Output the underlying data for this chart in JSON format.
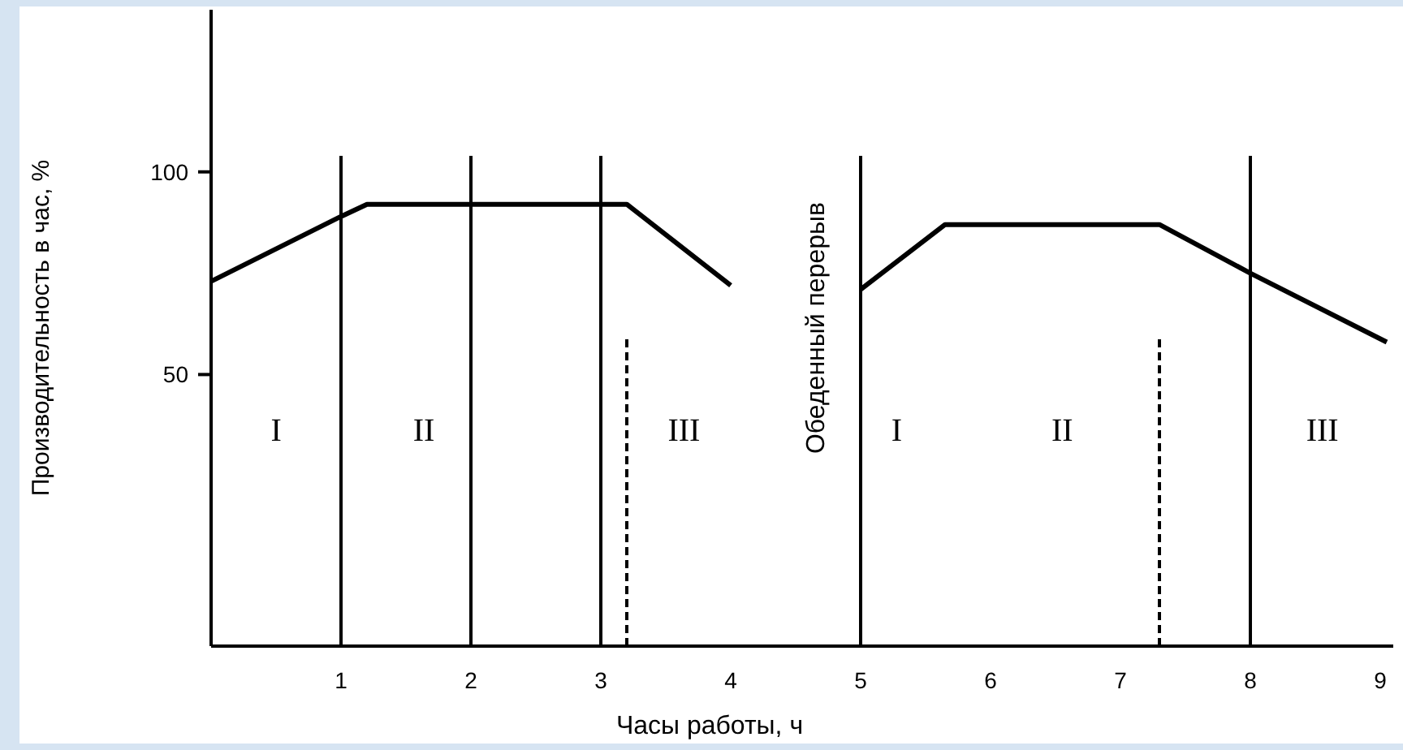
{
  "chart_data": {
    "type": "line",
    "xlabel": "Часы работы, ч",
    "ylabel": "Производительность в час, %",
    "x": [
      0,
      1,
      1.2,
      3.2,
      4,
      5,
      5.65,
      7.3,
      8,
      9.05
    ],
    "series": [
      {
        "color": "#000000",
        "values": [
          73,
          89,
          92,
          92,
          72,
          null,
          null,
          null,
          null,
          null
        ]
      },
      {
        "color": "#000000",
        "values": [
          null,
          null,
          null,
          null,
          null,
          71,
          87,
          87,
          75,
          58
        ]
      }
    ],
    "xlim": [
      0,
      9.1
    ],
    "xticks": [
      1,
      2,
      3,
      4,
      5,
      6,
      7,
      8,
      9
    ],
    "ylim": [
      -17,
      140
    ],
    "yticks": [
      50,
      100
    ],
    "grid": false,
    "marker": "none",
    "line_style": "solid",
    "ref_lines": [
      {
        "axis": "x",
        "value": 1,
        "color": "#000000",
        "line_style": "solid"
      },
      {
        "axis": "x",
        "value": 2,
        "color": "#000000",
        "line_style": "solid"
      },
      {
        "axis": "x",
        "value": 3,
        "color": "#000000",
        "line_style": "solid"
      },
      {
        "axis": "x",
        "value": 3.2,
        "color": "#000000",
        "line_style": "dashed"
      },
      {
        "axis": "x",
        "value": 5,
        "color": "#000000",
        "line_style": "solid"
      },
      {
        "axis": "x",
        "value": 7.3,
        "color": "#000000",
        "line_style": "dashed"
      },
      {
        "axis": "x",
        "value": 8,
        "color": "#000000",
        "line_style": "solid"
      }
    ],
    "annotations": [
      "I",
      "II",
      "III",
      "I",
      "II",
      "III",
      "Обеденный перерыв"
    ]
  }
}
